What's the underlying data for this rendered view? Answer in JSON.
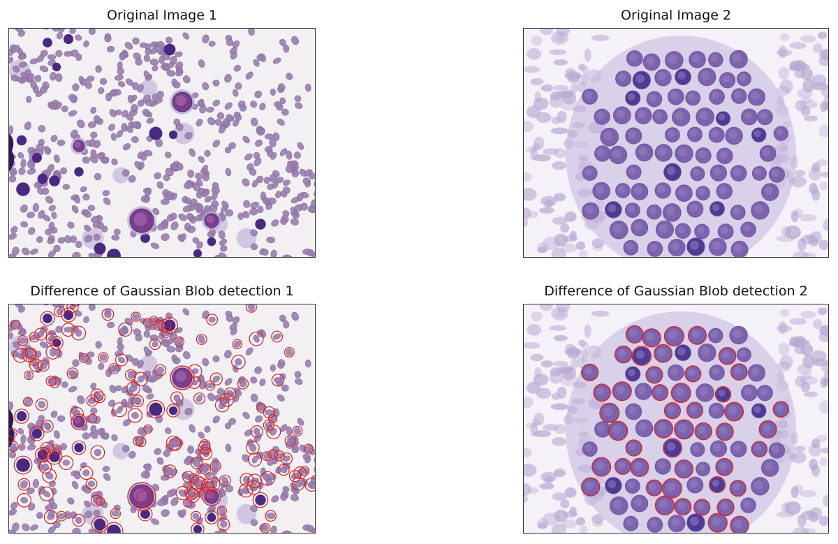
{
  "panels": [
    {
      "title": "Original Image 1"
    },
    {
      "title": "Original Image 2"
    },
    {
      "title": "Difference of Gaussian Blob detection 1"
    },
    {
      "title": "Difference of Gaussian Blob detection 2"
    }
  ],
  "colors": {
    "background_1": "#f2f0f3",
    "rbc": "#9a7fae",
    "dark_cell": "#4a2a80",
    "background_2": "#f4f2f8",
    "nucleus": "#7d62ad",
    "cytoplasm": "#b7a6d4",
    "blob_circle": "#e02020"
  }
}
